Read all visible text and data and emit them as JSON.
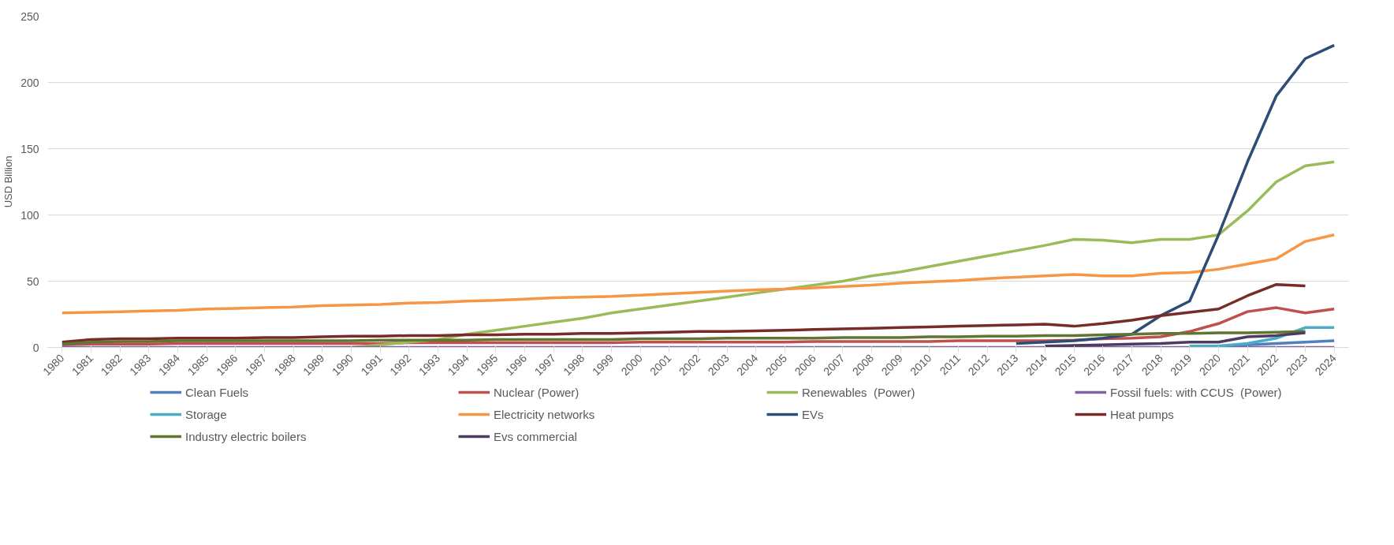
{
  "chart_data": {
    "type": "line",
    "ylabel": "USD Billion",
    "categories": [
      "1980",
      "1981",
      "1982",
      "1983",
      "1984",
      "1985",
      "1986",
      "1987",
      "1988",
      "1989",
      "1990",
      "1991",
      "1992",
      "1993",
      "1994",
      "1995",
      "1996",
      "1997",
      "1998",
      "1999",
      "2000",
      "2001",
      "2002",
      "2003",
      "2004",
      "2005",
      "2006",
      "2007",
      "2008",
      "2009",
      "2010",
      "2011",
      "2012",
      "2013",
      "2014",
      "2015",
      "2016",
      "2017",
      "2018",
      "2019",
      "2020",
      "2021",
      "2022",
      "2023",
      "2024"
    ],
    "ylim": [
      0,
      250
    ],
    "yticks": [
      0,
      50,
      100,
      150,
      200,
      250
    ],
    "grid": "y",
    "legend": "bottom",
    "line_style": "solid",
    "series": [
      {
        "name": "Clean Fuels",
        "color": "#4f81bd",
        "values": [
          null,
          null,
          null,
          null,
          null,
          null,
          null,
          null,
          null,
          null,
          null,
          null,
          null,
          null,
          null,
          null,
          null,
          null,
          null,
          null,
          null,
          null,
          null,
          null,
          null,
          null,
          null,
          null,
          null,
          null,
          null,
          null,
          null,
          null,
          null,
          null,
          null,
          null,
          null,
          0.5,
          1,
          2,
          3,
          4,
          5
        ]
      },
      {
        "name": "Nuclear (Power)",
        "color": "#c0504d",
        "values": [
          2,
          2.5,
          2.5,
          2.5,
          3,
          3,
          3,
          3,
          3,
          3,
          3,
          3,
          3.5,
          3.5,
          3.5,
          3.5,
          3.5,
          3.5,
          3.5,
          3.5,
          4,
          4,
          4,
          4,
          4,
          4,
          4.5,
          4.5,
          4.5,
          4.5,
          4.5,
          5,
          5,
          5,
          5,
          5.5,
          6.5,
          7,
          8,
          12,
          18,
          27,
          30,
          26,
          29
        ]
      },
      {
        "name": "Renewables  (Power)",
        "color": "#9bbb59",
        "values": [
          null,
          null,
          null,
          null,
          null,
          null,
          null,
          null,
          null,
          0,
          0,
          2,
          4,
          6,
          10,
          13,
          16,
          19,
          22,
          26,
          29,
          32,
          35,
          38,
          41,
          44,
          47,
          50,
          54,
          57,
          61,
          65,
          69,
          73,
          77,
          81.5,
          81,
          79,
          81.5,
          81.5,
          85,
          103,
          125,
          137,
          140
        ]
      },
      {
        "name": "Fossil fuels: with CCUS  (Power)",
        "color": "#8064a2",
        "values": [
          0,
          0,
          0,
          0,
          0,
          0,
          0,
          0,
          0,
          0,
          0,
          0,
          0,
          0,
          0,
          0,
          0,
          0,
          0,
          0,
          0,
          0,
          0,
          0,
          0,
          0,
          0,
          0,
          0,
          0,
          0,
          0,
          0,
          0,
          0,
          0,
          0,
          0,
          0,
          0,
          0,
          0,
          0,
          0,
          0
        ]
      },
      {
        "name": "Storage",
        "color": "#4bacc6",
        "values": [
          null,
          null,
          null,
          null,
          null,
          null,
          null,
          null,
          null,
          null,
          null,
          null,
          null,
          null,
          null,
          null,
          null,
          null,
          null,
          null,
          null,
          null,
          null,
          null,
          null,
          null,
          null,
          null,
          null,
          null,
          null,
          null,
          null,
          null,
          null,
          null,
          null,
          null,
          null,
          1,
          1,
          3,
          7,
          15,
          15
        ]
      },
      {
        "name": "Electricity networks",
        "color": "#f79646",
        "values": [
          26,
          26.5,
          27,
          27.5,
          28,
          29,
          29.5,
          30,
          30.5,
          31.5,
          32,
          32.5,
          33.5,
          34,
          35,
          35.5,
          36.5,
          37.5,
          38,
          38.5,
          39.5,
          40.5,
          41.5,
          42.5,
          43.5,
          44,
          45,
          46,
          47,
          48.5,
          49.5,
          50.5,
          52,
          53,
          54,
          55,
          54,
          54,
          56,
          56.5,
          59,
          63,
          67,
          80,
          85
        ]
      },
      {
        "name": "EVs",
        "color": "#2c4d75",
        "values": [
          null,
          null,
          null,
          null,
          null,
          null,
          null,
          null,
          null,
          null,
          null,
          null,
          null,
          null,
          null,
          null,
          null,
          null,
          null,
          null,
          null,
          null,
          null,
          null,
          null,
          null,
          null,
          null,
          null,
          null,
          null,
          null,
          null,
          3,
          4,
          5,
          7,
          10,
          24,
          35,
          85,
          140,
          190,
          218,
          228
        ]
      },
      {
        "name": "Heat pumps",
        "color": "#772c2a",
        "values": [
          4,
          6,
          6.5,
          6.5,
          7,
          7,
          7,
          7.5,
          7.5,
          8,
          8.5,
          8.5,
          9,
          9,
          9.5,
          9.5,
          10,
          10,
          10.5,
          10.5,
          11,
          11.5,
          12,
          12,
          12.5,
          13,
          13.5,
          14,
          14.5,
          15,
          15.5,
          16,
          16.5,
          17,
          17.5,
          16,
          18,
          20.5,
          24,
          26.5,
          29,
          39,
          47.5,
          46.5,
          null
        ]
      },
      {
        "name": "Industry electric boilers",
        "color": "#5f7530",
        "values": [
          2.5,
          4,
          4.5,
          4.5,
          5,
          5,
          5,
          5,
          5,
          5,
          5,
          5.5,
          5.5,
          5.5,
          5.5,
          6,
          6,
          6,
          6,
          6,
          6.5,
          6.5,
          6.5,
          7,
          7,
          7,
          7,
          7.5,
          7.5,
          7.5,
          8,
          8,
          8.5,
          8.5,
          9,
          9,
          9.5,
          10,
          10.5,
          10.5,
          11,
          11,
          11.5,
          12,
          null
        ]
      },
      {
        "name": "Evs commercial",
        "color": "#4d3b62",
        "values": [
          null,
          null,
          null,
          null,
          null,
          null,
          null,
          null,
          null,
          null,
          null,
          null,
          null,
          null,
          null,
          null,
          null,
          null,
          null,
          null,
          null,
          null,
          null,
          null,
          null,
          null,
          null,
          null,
          null,
          null,
          null,
          null,
          null,
          null,
          1,
          1.5,
          2,
          2.5,
          3,
          4,
          4,
          8,
          9,
          11,
          null
        ]
      }
    ]
  }
}
